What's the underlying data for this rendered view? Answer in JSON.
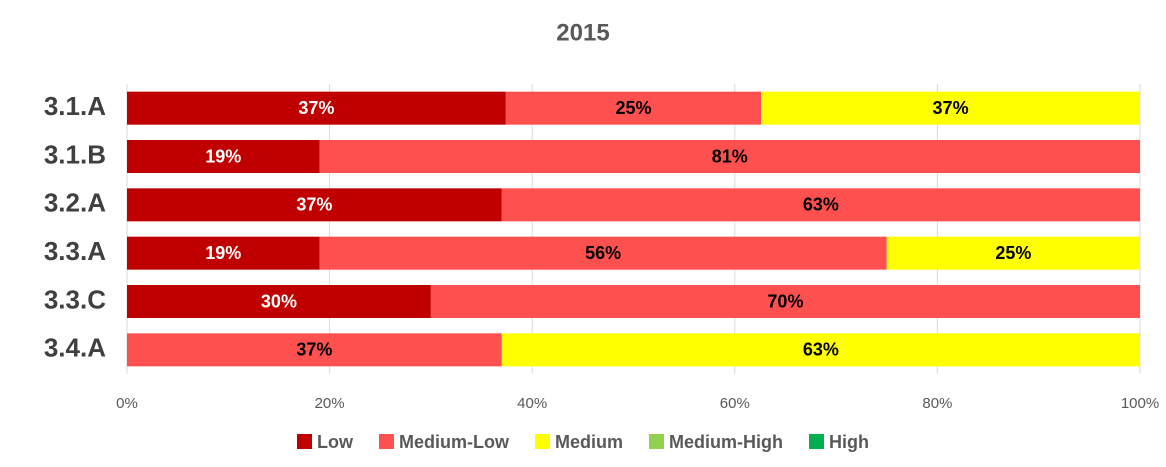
{
  "chart_data": {
    "type": "stacked-bar-horizontal",
    "title": "2015",
    "categories": [
      "3.1.A",
      "3.1.B",
      "3.2.A",
      "3.3.A",
      "3.3.C",
      "3.4.A"
    ],
    "series": [
      {
        "name": "Low",
        "color": "#c00000",
        "label_color": "#ffffff",
        "values": [
          37.4,
          19,
          37,
          19,
          30,
          null
        ],
        "value_labels": [
          "37%",
          "19%",
          "37%",
          "19%",
          "30%",
          null
        ]
      },
      {
        "name": "Medium-Low",
        "color": "#ff5050",
        "label_color": "#000000",
        "values": [
          25.2,
          81,
          63,
          56,
          70,
          37
        ],
        "value_labels": [
          "25%",
          "81%",
          "63%",
          "56%",
          "70%",
          "37%"
        ]
      },
      {
        "name": "Medium",
        "color": "#ffff00",
        "label_color": "#000000",
        "values": [
          37.4,
          null,
          null,
          25,
          null,
          63
        ],
        "value_labels": [
          "37%",
          null,
          null,
          "25%",
          null,
          "63%"
        ]
      },
      {
        "name": "Medium-High",
        "color": "#92d050",
        "label_color": "#000000",
        "values": [
          null,
          null,
          null,
          null,
          null,
          null
        ],
        "value_labels": [
          null,
          null,
          null,
          null,
          null,
          null
        ]
      },
      {
        "name": "High",
        "color": "#00b050",
        "label_color": "#000000",
        "values": [
          null,
          null,
          null,
          null,
          null,
          null
        ],
        "value_labels": [
          null,
          null,
          null,
          null,
          null,
          null
        ]
      }
    ],
    "xlim": [
      0,
      100
    ],
    "xticks": [
      {
        "value": 0,
        "label": "0%"
      },
      {
        "value": 20,
        "label": "20%"
      },
      {
        "value": 40,
        "label": "40%"
      },
      {
        "value": 60,
        "label": "60%"
      },
      {
        "value": 80,
        "label": "80%"
      },
      {
        "value": 100,
        "label": "100%"
      }
    ],
    "grid": true,
    "legend": "bottom"
  }
}
